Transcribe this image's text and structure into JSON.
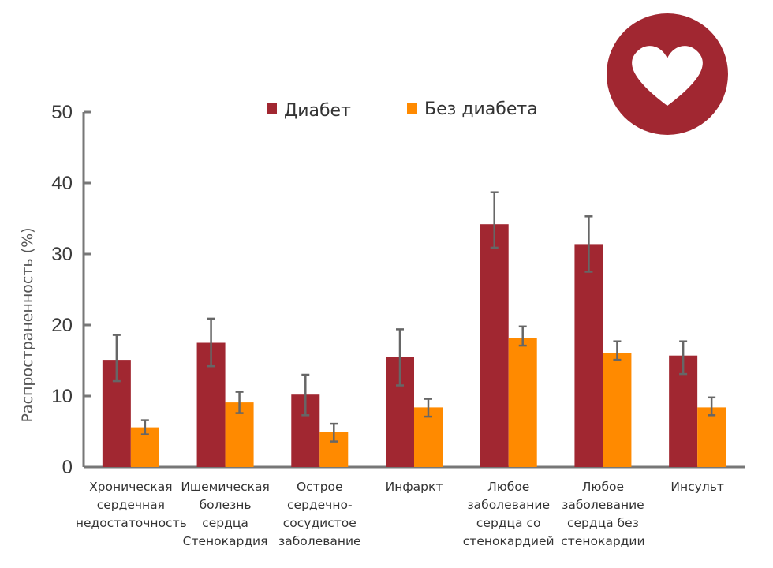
{
  "colors": {
    "diabetes": "#a12731",
    "no_diabetes": "#ff8a00",
    "axis": "#777777",
    "error_bar": "#666666",
    "badge": "#a12731"
  },
  "badge_icon": "heart-icon",
  "chart_data": {
    "type": "bar",
    "ylabel": "Распространенность (%)",
    "ylim": [
      0,
      50
    ],
    "yticks": [
      0,
      10,
      20,
      30,
      40,
      50
    ],
    "grid": false,
    "legend_position": "top",
    "categories": [
      "Хроническая\nсердечная\nнедостаточность",
      "Ишемическая\nболезнь\nсердца\nСтенокардия",
      "Острое\nсердечно-\nсосудистое\nзаболевание",
      "Инфаркт",
      "Любое\nзаболевание\nсердца со\nстенокардией",
      "Любое\nзаболевание\nсердца без\nстенокардии",
      "Инсульт"
    ],
    "series": [
      {
        "name": "Диабет",
        "values": [
          15.1,
          17.5,
          10.2,
          15.5,
          34.2,
          31.4,
          15.7
        ],
        "err_low": [
          12.1,
          14.2,
          7.3,
          11.5,
          30.9,
          27.5,
          13.1
        ],
        "err_high": [
          18.6,
          20.9,
          13.0,
          19.4,
          38.7,
          35.3,
          17.7
        ]
      },
      {
        "name": "Без диабета",
        "values": [
          5.6,
          9.1,
          4.9,
          8.4,
          18.2,
          16.1,
          8.4
        ],
        "err_low": [
          4.6,
          7.6,
          3.6,
          7.1,
          17.1,
          15.1,
          7.3
        ],
        "err_high": [
          6.6,
          10.6,
          6.1,
          9.6,
          19.8,
          17.7,
          9.8
        ]
      }
    ]
  }
}
